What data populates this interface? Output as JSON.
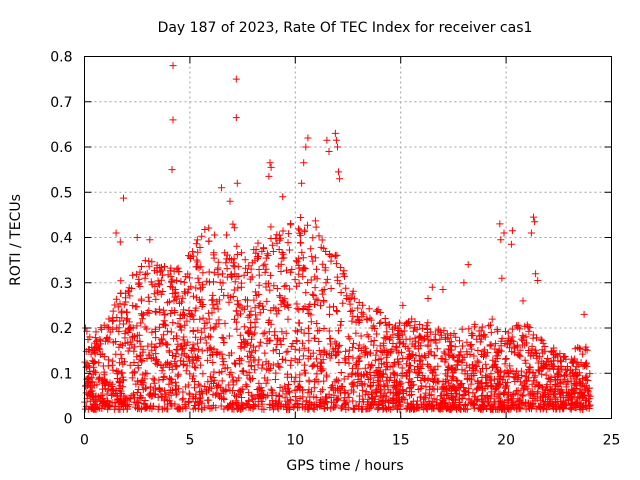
{
  "chart_data": {
    "type": "scatter",
    "title": "Day 187 of 2023, Rate Of TEC Index for receiver cas1",
    "xlabel": "GPS time / hours",
    "ylabel": "ROTI / TECUs",
    "xlim": [
      0,
      25
    ],
    "ylim": [
      0,
      0.8
    ],
    "xticks": [
      "0",
      "5",
      "10",
      "15",
      "20",
      "25"
    ],
    "yticks": [
      "0",
      "0.1",
      "0.2",
      "0.3",
      "0.4",
      "0.5",
      "0.6",
      "0.7",
      "0.8"
    ],
    "grid": true,
    "marker": "+",
    "color": "#ff0000",
    "envelope": {
      "hours": [
        0,
        0.5,
        1,
        1.5,
        2,
        2.5,
        3,
        3.5,
        4,
        4.5,
        5,
        5.5,
        6,
        6.5,
        7,
        7.5,
        8,
        8.5,
        9,
        9.5,
        10,
        10.5,
        11,
        11.5,
        12,
        12.5,
        13,
        13.5,
        14,
        14.5,
        15,
        15.5,
        16,
        16.5,
        17,
        17.5,
        18,
        18.5,
        19,
        19.5,
        20,
        20.5,
        21,
        21.5,
        22,
        22.5,
        23,
        23.5,
        24
      ],
      "upper_tecu": [
        0.2,
        0.18,
        0.22,
        0.27,
        0.3,
        0.33,
        0.37,
        0.34,
        0.35,
        0.33,
        0.38,
        0.42,
        0.43,
        0.41,
        0.44,
        0.36,
        0.38,
        0.42,
        0.44,
        0.43,
        0.45,
        0.43,
        0.44,
        0.4,
        0.42,
        0.31,
        0.27,
        0.25,
        0.24,
        0.22,
        0.21,
        0.22,
        0.22,
        0.21,
        0.2,
        0.19,
        0.2,
        0.21,
        0.22,
        0.2,
        0.2,
        0.21,
        0.22,
        0.18,
        0.17,
        0.15,
        0.14,
        0.17,
        0.15
      ]
    },
    "outliers": [
      {
        "x": 4.2,
        "y": 0.78
      },
      {
        "x": 7.2,
        "y": 0.75
      },
      {
        "x": 4.2,
        "y": 0.66
      },
      {
        "x": 7.2,
        "y": 0.665
      },
      {
        "x": 4.15,
        "y": 0.55
      },
      {
        "x": 1.85,
        "y": 0.487
      },
      {
        "x": 11.5,
        "y": 0.615
      },
      {
        "x": 11.9,
        "y": 0.63
      },
      {
        "x": 11.95,
        "y": 0.615
      },
      {
        "x": 12.0,
        "y": 0.6
      },
      {
        "x": 10.5,
        "y": 0.6
      },
      {
        "x": 10.6,
        "y": 0.62
      },
      {
        "x": 11.6,
        "y": 0.59
      },
      {
        "x": 8.8,
        "y": 0.565
      },
      {
        "x": 8.85,
        "y": 0.555
      },
      {
        "x": 8.75,
        "y": 0.535
      },
      {
        "x": 10.4,
        "y": 0.565
      },
      {
        "x": 12.05,
        "y": 0.545
      },
      {
        "x": 12.1,
        "y": 0.53
      },
      {
        "x": 7.25,
        "y": 0.52
      },
      {
        "x": 6.5,
        "y": 0.51
      },
      {
        "x": 10.3,
        "y": 0.52
      },
      {
        "x": 9.4,
        "y": 0.49
      },
      {
        "x": 6.9,
        "y": 0.48
      },
      {
        "x": 1.5,
        "y": 0.41
      },
      {
        "x": 1.7,
        "y": 0.39
      },
      {
        "x": 2.5,
        "y": 0.4
      },
      {
        "x": 3.1,
        "y": 0.395
      },
      {
        "x": 19.7,
        "y": 0.43
      },
      {
        "x": 19.9,
        "y": 0.41
      },
      {
        "x": 19.75,
        "y": 0.395
      },
      {
        "x": 20.3,
        "y": 0.415
      },
      {
        "x": 20.25,
        "y": 0.385
      },
      {
        "x": 21.3,
        "y": 0.445
      },
      {
        "x": 21.35,
        "y": 0.435
      },
      {
        "x": 21.2,
        "y": 0.41
      },
      {
        "x": 21.4,
        "y": 0.32
      },
      {
        "x": 21.5,
        "y": 0.305
      },
      {
        "x": 18.2,
        "y": 0.34
      },
      {
        "x": 18.0,
        "y": 0.3
      },
      {
        "x": 19.8,
        "y": 0.31
      },
      {
        "x": 16.5,
        "y": 0.29
      },
      {
        "x": 17.0,
        "y": 0.285
      },
      {
        "x": 20.8,
        "y": 0.26
      },
      {
        "x": 23.7,
        "y": 0.23
      },
      {
        "x": 14.0,
        "y": 0.21
      },
      {
        "x": 15.1,
        "y": 0.25
      },
      {
        "x": 0.05,
        "y": 0.2
      }
    ],
    "point_count": 3000,
    "point_seed": 187
  }
}
